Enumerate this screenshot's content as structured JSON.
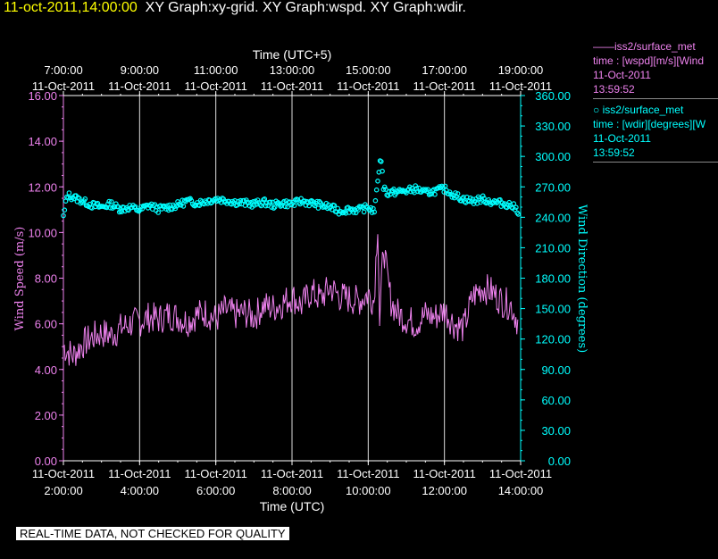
{
  "header": {
    "timestamp": "11-oct-2011,14:00:00",
    "graphs": "XY Graph:xy-grid.  XY Graph:wspd.  XY Graph:wdir."
  },
  "legend": {
    "items": [
      {
        "marker": "——",
        "name": "iss2/surface_met",
        "line1": "time : [wspd][m/s][Wind",
        "date": "11-Oct-2011",
        "time": "13:59:52",
        "color": "#ee82ee"
      },
      {
        "marker": "○",
        "name": "iss2/surface_met",
        "line1": "time : [wdir][degrees][W",
        "date": "11-Oct-2011",
        "time": "13:59:52",
        "color": "#00ffff"
      }
    ]
  },
  "footer": "REAL-TIME DATA, NOT CHECKED FOR QUALITY",
  "chart_data": {
    "type": "line",
    "x_unit": "hours UTC",
    "xlim": [
      2,
      14
    ],
    "top_axis_label": "Time (UTC+5)",
    "bottom_axis_label": "Time (UTC)",
    "top_ticks": [
      {
        "time": "7:00:00",
        "date": "11-Oct-2011"
      },
      {
        "time": "9:00:00",
        "date": "11-Oct-2011"
      },
      {
        "time": "11:00:00",
        "date": "11-Oct-2011"
      },
      {
        "time": "13:00:00",
        "date": "11-Oct-2011"
      },
      {
        "time": "15:00:00",
        "date": "11-Oct-2011"
      },
      {
        "time": "17:00:00",
        "date": "11-Oct-2011"
      },
      {
        "time": "19:00:00",
        "date": "11-Oct-2011"
      }
    ],
    "bottom_ticks": [
      {
        "time": "2:00:00",
        "date": "11-Oct-2011"
      },
      {
        "time": "4:00:00",
        "date": "11-Oct-2011"
      },
      {
        "time": "6:00:00",
        "date": "11-Oct-2011"
      },
      {
        "time": "8:00:00",
        "date": "11-Oct-2011"
      },
      {
        "time": "10:00:00",
        "date": "11-Oct-2011"
      },
      {
        "time": "12:00:00",
        "date": "11-Oct-2011"
      },
      {
        "time": "14:00:00",
        "date": "11-Oct-2011"
      }
    ],
    "left_axis": {
      "label": "Wind Speed (m/s)",
      "ylim": [
        0,
        16
      ],
      "ticks": [
        "0.00",
        "2.00",
        "4.00",
        "6.00",
        "8.00",
        "10.00",
        "12.00",
        "14.00",
        "16.00"
      ],
      "color": "#ee82ee"
    },
    "right_axis": {
      "label": "Wind Direction (degrees)",
      "ylim": [
        0,
        360
      ],
      "ticks": [
        "0.00",
        "30.00",
        "60.00",
        "90.00",
        "120.00",
        "150.00",
        "180.00",
        "210.00",
        "240.00",
        "270.00",
        "300.00",
        "330.00",
        "360.00"
      ],
      "color": "#00ffff"
    },
    "grid": "vertical lines every 2 hours",
    "series": [
      {
        "axis": "left",
        "style": "line",
        "x": [
          2.0,
          2.25,
          2.5,
          2.75,
          3.0,
          3.25,
          3.5,
          3.75,
          4.0,
          4.25,
          4.5,
          4.75,
          5.0,
          5.25,
          5.5,
          5.75,
          6.0,
          6.25,
          6.5,
          6.75,
          7.0,
          7.25,
          7.5,
          7.75,
          8.0,
          8.25,
          8.5,
          8.75,
          9.0,
          9.25,
          9.5,
          9.75,
          10.0,
          10.15,
          10.25,
          10.3,
          10.4,
          10.5,
          10.6,
          10.75,
          11.0,
          11.25,
          11.5,
          11.75,
          12.0,
          12.25,
          12.5,
          12.75,
          13.0,
          13.25,
          13.5,
          13.75,
          13.95
        ],
        "y": [
          5.0,
          4.6,
          5.1,
          5.4,
          5.6,
          5.5,
          5.8,
          6.0,
          6.1,
          6.3,
          6.2,
          6.4,
          6.3,
          6.1,
          6.4,
          6.5,
          6.2,
          6.6,
          6.4,
          6.5,
          6.3,
          6.8,
          6.7,
          6.9,
          7.2,
          6.8,
          7.4,
          7.1,
          7.6,
          7.2,
          7.1,
          7.0,
          7.3,
          7.0,
          10.5,
          6.0,
          9.5,
          8.0,
          7.0,
          6.5,
          6.2,
          6.0,
          6.4,
          6.3,
          6.6,
          6.0,
          5.8,
          7.2,
          7.6,
          7.4,
          7.0,
          6.8,
          6.0
        ]
      },
      {
        "axis": "right",
        "style": "markers",
        "x": [
          2.0,
          2.1,
          2.25,
          2.5,
          2.75,
          3.0,
          3.25,
          3.5,
          3.75,
          4.0,
          4.25,
          4.5,
          4.75,
          5.0,
          5.25,
          5.5,
          5.75,
          6.0,
          6.25,
          6.5,
          6.75,
          7.0,
          7.25,
          7.5,
          7.75,
          8.0,
          8.25,
          8.5,
          8.75,
          9.0,
          9.25,
          9.5,
          9.75,
          10.0,
          10.15,
          10.2,
          10.25,
          10.3,
          10.35,
          10.4,
          10.5,
          10.75,
          11.0,
          11.25,
          11.5,
          11.75,
          12.0,
          12.25,
          12.5,
          12.75,
          13.0,
          13.25,
          13.5,
          13.75,
          13.95
        ],
        "y": [
          240,
          262,
          260,
          256,
          252,
          250,
          253,
          248,
          250,
          247,
          252,
          248,
          250,
          252,
          256,
          254,
          256,
          258,
          257,
          255,
          254,
          253,
          255,
          252,
          254,
          253,
          256,
          254,
          252,
          250,
          246,
          248,
          247,
          250,
          246,
          255,
          278,
          292,
          298,
          270,
          264,
          265,
          266,
          268,
          264,
          266,
          268,
          262,
          258,
          256,
          258,
          255,
          254,
          252,
          246
        ]
      }
    ]
  }
}
